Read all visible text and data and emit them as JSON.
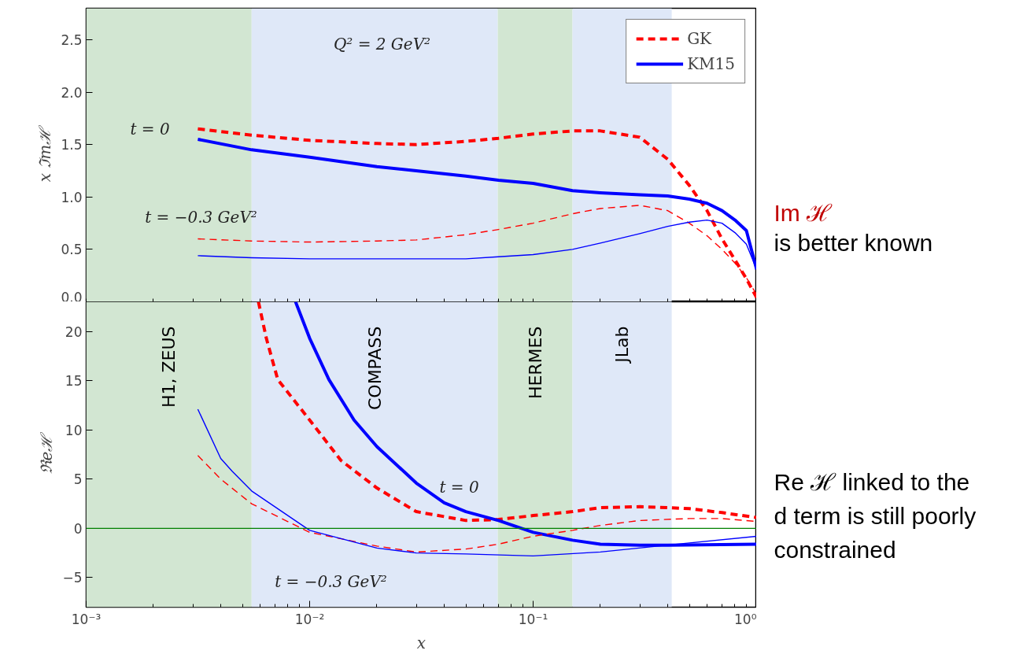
{
  "chart_data": [
    {
      "type": "line",
      "ylabel": "x ℑmℋ",
      "log": "x",
      "grid": false,
      "legend": "top right",
      "marker": "none",
      "tick_labels": "y",
      "xlim": [
        0.001,
        1
      ],
      "ylim": [
        0,
        2.8
      ],
      "xticks": [
        {
          "value": 0.001,
          "label": null
        },
        {
          "value": 0.002,
          "label": null
        },
        {
          "value": 0.003,
          "label": null
        },
        {
          "value": 0.004,
          "label": null
        },
        {
          "value": 0.005,
          "label": null
        },
        {
          "value": 0.006,
          "label": null
        },
        {
          "value": 0.007,
          "label": null
        },
        {
          "value": 0.008,
          "label": null
        },
        {
          "value": 0.009,
          "label": null
        },
        {
          "value": 0.01,
          "label": null
        },
        {
          "value": 0.02,
          "label": null
        },
        {
          "value": 0.03,
          "label": null
        },
        {
          "value": 0.04,
          "label": null
        },
        {
          "value": 0.05,
          "label": null
        },
        {
          "value": 0.06,
          "label": null
        },
        {
          "value": 0.07,
          "label": null
        },
        {
          "value": 0.08,
          "label": null
        },
        {
          "value": 0.09,
          "label": null
        },
        {
          "value": 0.1,
          "label": null
        },
        {
          "value": 0.2,
          "label": null
        },
        {
          "value": 0.3,
          "label": null
        },
        {
          "value": 0.4,
          "label": null
        },
        {
          "value": 0.5,
          "label": null
        },
        {
          "value": 0.6,
          "label": null
        },
        {
          "value": 0.7,
          "label": null
        },
        {
          "value": 0.8,
          "label": null
        },
        {
          "value": 0.9,
          "label": null
        },
        {
          "value": 1,
          "label": null
        }
      ],
      "yticks": [
        {
          "value": 0,
          "label": "0.0"
        },
        {
          "value": 0.5,
          "label": "0.5"
        },
        {
          "value": 1,
          "label": "1.0"
        },
        {
          "value": 1.5,
          "label": "1.5"
        },
        {
          "value": 2,
          "label": "2.0"
        },
        {
          "value": 2.5,
          "label": "2.5"
        }
      ],
      "bands": [
        {
          "axis": "x",
          "from": 0.001,
          "to": 0.0055,
          "color": "#d2e6d2"
        },
        {
          "axis": "x",
          "from": 0.0055,
          "to": 0.0695,
          "color": "#dfe8f8"
        },
        {
          "axis": "x",
          "from": 0.0695,
          "to": 0.15,
          "color": "#d2e6d2"
        },
        {
          "axis": "x",
          "from": 0.15,
          "to": 0.417,
          "color": "#dfe8f8"
        }
      ],
      "annotations": [
        "Q² = 2 GeV²",
        "t = 0",
        "t = −0.3 GeV²"
      ],
      "series": [
        {
          "name": "GK",
          "color": "#ff0000",
          "line_style": "dashed",
          "x": [
            0.00316,
            0.0055,
            0.01,
            0.02,
            0.03,
            0.05,
            0.07,
            0.1,
            0.15,
            0.2,
            0.3,
            0.4,
            0.5,
            0.6,
            0.7,
            0.8,
            0.9,
            1.0
          ],
          "values": [
            1.65,
            1.59,
            1.54,
            1.51,
            1.5,
            1.53,
            1.56,
            1.6,
            1.63,
            1.63,
            1.57,
            1.36,
            1.11,
            0.87,
            0.6,
            0.4,
            0.22,
            0.04
          ]
        },
        {
          "name": "KM15",
          "color": "#0000ff",
          "line_style": "solid",
          "x": [
            0.00316,
            0.0055,
            0.01,
            0.02,
            0.03,
            0.05,
            0.07,
            0.1,
            0.15,
            0.2,
            0.3,
            0.4,
            0.5,
            0.6,
            0.7,
            0.8,
            0.9,
            1.0
          ],
          "values": [
            1.55,
            1.45,
            1.38,
            1.29,
            1.25,
            1.2,
            1.16,
            1.13,
            1.06,
            1.04,
            1.02,
            1.01,
            0.98,
            0.94,
            0.87,
            0.78,
            0.68,
            0.31
          ]
        },
        {
          "color": "#ff0000",
          "line_style": "dashed",
          "x": [
            0.00316,
            0.0055,
            0.01,
            0.02,
            0.03,
            0.05,
            0.07,
            0.1,
            0.15,
            0.2,
            0.3,
            0.4,
            0.5,
            0.6,
            0.7,
            0.8,
            0.9,
            1.0
          ],
          "values": [
            0.6,
            0.58,
            0.57,
            0.58,
            0.59,
            0.64,
            0.69,
            0.75,
            0.84,
            0.89,
            0.92,
            0.87,
            0.75,
            0.63,
            0.5,
            0.37,
            0.23,
            0.07
          ]
        },
        {
          "color": "#0000ff",
          "line_style": "solid",
          "x": [
            0.00316,
            0.0055,
            0.01,
            0.02,
            0.03,
            0.05,
            0.07,
            0.1,
            0.15,
            0.2,
            0.3,
            0.4,
            0.5,
            0.6,
            0.7,
            0.8,
            0.9,
            1.0
          ],
          "values": [
            0.44,
            0.42,
            0.41,
            0.41,
            0.41,
            0.41,
            0.43,
            0.45,
            0.5,
            0.56,
            0.65,
            0.72,
            0.76,
            0.78,
            0.75,
            0.66,
            0.55,
            0.31
          ]
        }
      ]
    },
    {
      "type": "line",
      "ylabel": "ℜeℋ",
      "xlabel": "x",
      "log": "x",
      "grid": false,
      "legend": false,
      "marker": "none",
      "xlim": [
        0.001,
        1
      ],
      "ylim": [
        -8,
        23
      ],
      "xticks": [
        {
          "value": 0.001,
          "label": "10⁻³"
        },
        {
          "value": 0.002,
          "label": null
        },
        {
          "value": 0.003,
          "label": null
        },
        {
          "value": 0.004,
          "label": null
        },
        {
          "value": 0.005,
          "label": null
        },
        {
          "value": 0.006,
          "label": null
        },
        {
          "value": 0.007,
          "label": null
        },
        {
          "value": 0.008,
          "label": null
        },
        {
          "value": 0.009,
          "label": null
        },
        {
          "value": 0.01,
          "label": "10⁻²"
        },
        {
          "value": 0.02,
          "label": null
        },
        {
          "value": 0.03,
          "label": null
        },
        {
          "value": 0.04,
          "label": null
        },
        {
          "value": 0.05,
          "label": null
        },
        {
          "value": 0.06,
          "label": null
        },
        {
          "value": 0.07,
          "label": null
        },
        {
          "value": 0.08,
          "label": null
        },
        {
          "value": 0.09,
          "label": null
        },
        {
          "value": 0.1,
          "label": "10⁻¹"
        },
        {
          "value": 0.2,
          "label": null
        },
        {
          "value": 0.3,
          "label": null
        },
        {
          "value": 0.4,
          "label": null
        },
        {
          "value": 0.5,
          "label": null
        },
        {
          "value": 0.6,
          "label": null
        },
        {
          "value": 0.7,
          "label": null
        },
        {
          "value": 0.8,
          "label": null
        },
        {
          "value": 0.9,
          "label": null
        },
        {
          "value": 1,
          "label": "10⁰"
        }
      ],
      "yticks": [
        {
          "value": -5,
          "label": "−5"
        },
        0,
        5,
        10,
        15,
        20
      ],
      "bands": [
        {
          "axis": "x",
          "from": 0.001,
          "to": 0.0055,
          "color": "#d2e6d2",
          "label": "H1, ZEUS"
        },
        {
          "axis": "x",
          "from": 0.0055,
          "to": 0.0695,
          "color": "#dfe8f8",
          "label": "COMPASS"
        },
        {
          "axis": "x",
          "from": 0.0695,
          "to": 0.15,
          "color": "#d2e6d2",
          "label": "HERMES"
        },
        {
          "axis": "x",
          "from": 0.15,
          "to": 0.417,
          "color": "#dfe8f8",
          "label": "JLab"
        }
      ],
      "ref_lines": [
        {
          "axis": "y",
          "value": 0,
          "color": "#008000"
        }
      ],
      "annotations": [
        "t = 0",
        "t = −0.3 GeV²"
      ],
      "series": [
        {
          "color": "#ff0000",
          "line_style": "dashed",
          "x": [
            0.0059,
            0.0064,
            0.0072,
            0.01,
            0.0138,
            0.02,
            0.03,
            0.05,
            0.07,
            0.1,
            0.15,
            0.2,
            0.3,
            0.4,
            0.5,
            0.7,
            1.0
          ],
          "values": [
            23,
            19.3,
            15.1,
            11.0,
            6.9,
            4.1,
            1.7,
            0.8,
            0.9,
            1.3,
            1.7,
            2.1,
            2.2,
            2.1,
            2.0,
            1.6,
            1.1
          ]
        },
        {
          "color": "#0000ff",
          "line_style": "solid",
          "x": [
            0.00865,
            0.01,
            0.0122,
            0.0158,
            0.02,
            0.03,
            0.04,
            0.05,
            0.07,
            0.1,
            0.15,
            0.2,
            0.3,
            0.4,
            1.0
          ],
          "values": [
            23,
            19.3,
            15.1,
            11.0,
            8.3,
            4.6,
            2.6,
            1.7,
            0.8,
            -0.4,
            -1.2,
            -1.6,
            -1.7,
            -1.7,
            -1.6
          ]
        },
        {
          "color": "#ff0000",
          "line_style": "dashed",
          "x": [
            0.00316,
            0.004,
            0.0055,
            0.01,
            0.02,
            0.03,
            0.05,
            0.07,
            0.1,
            0.15,
            0.2,
            0.3,
            0.5,
            0.7,
            1.0
          ],
          "values": [
            7.4,
            5.0,
            2.5,
            -0.4,
            -1.8,
            -2.4,
            -2.1,
            -1.6,
            -0.8,
            -0.2,
            0.3,
            0.8,
            1.0,
            1.0,
            0.7
          ]
        },
        {
          "color": "#0000ff",
          "line_style": "solid",
          "x": [
            0.00316,
            0.004,
            0.0045,
            0.0055,
            0.01,
            0.02,
            0.03,
            0.05,
            0.1,
            0.2,
            0.4,
            1.0
          ],
          "values": [
            12.1,
            7.1,
            5.8,
            3.8,
            -0.2,
            -2.0,
            -2.5,
            -2.6,
            -2.8,
            -2.4,
            -1.7,
            -0.8
          ]
        }
      ]
    },
    {
      "type": "other",
      "annotations": [
        "Im ℋ",
        "is better known",
        "Re ℋ linked to the",
        "d term is still poorly",
        "constrained"
      ]
    }
  ]
}
